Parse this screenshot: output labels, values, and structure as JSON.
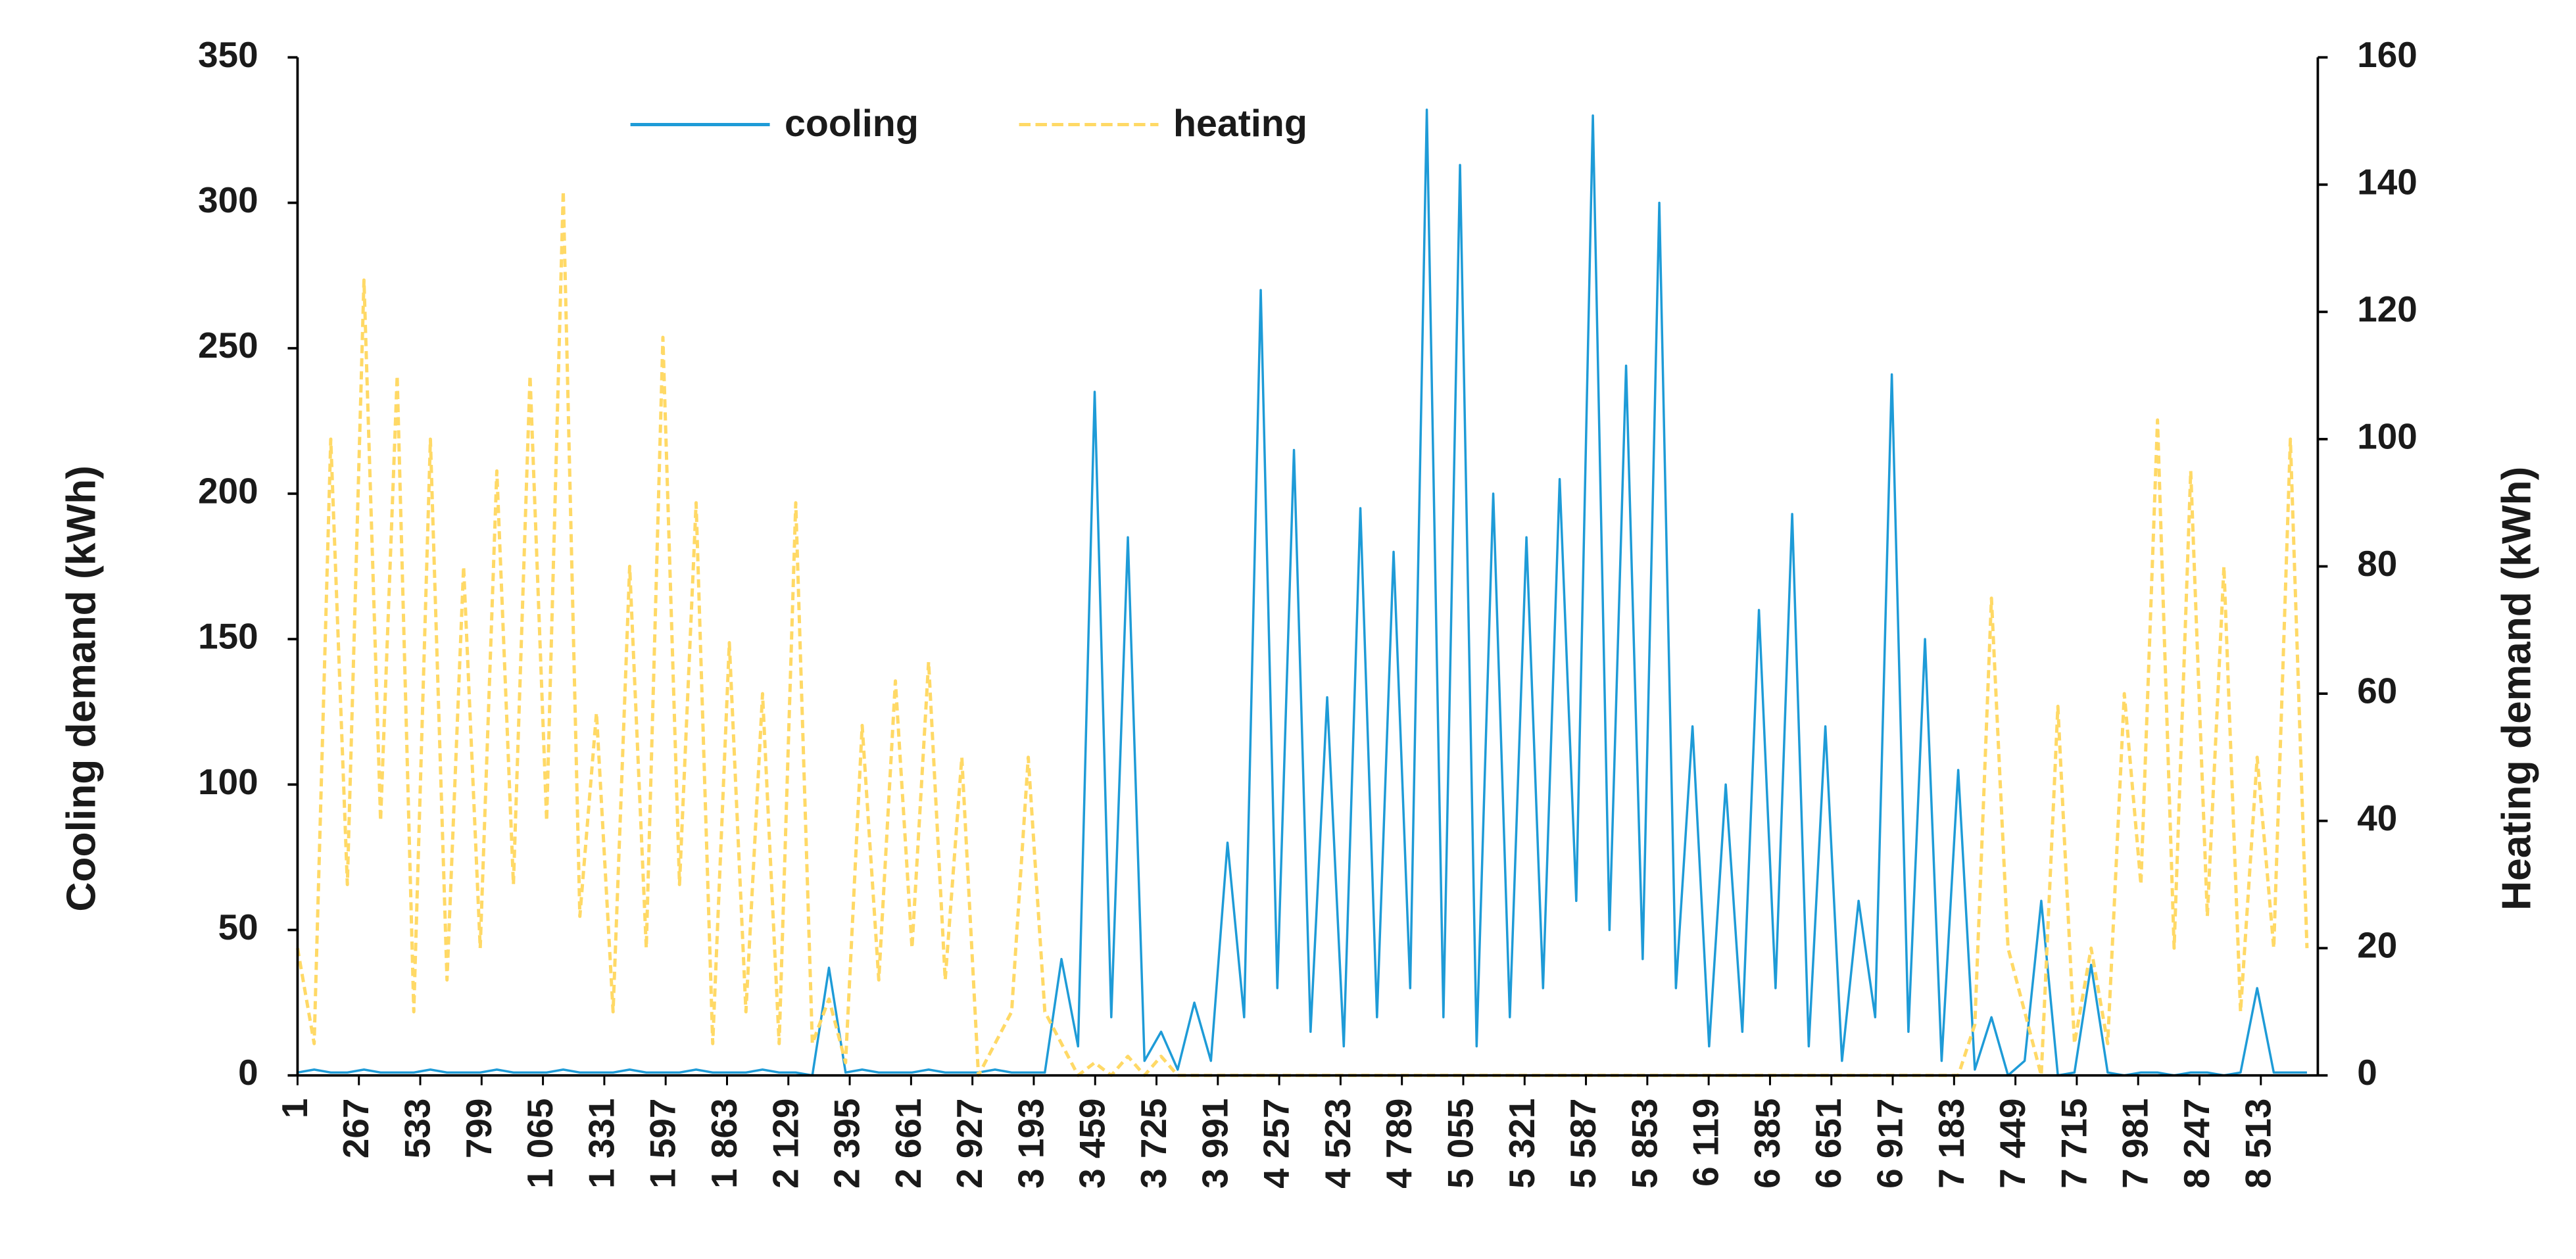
{
  "chart_data": {
    "type": "line",
    "y_label": "Cooling demand (kWh)",
    "y2_label": "Heating demand (kWh)",
    "legend": "top",
    "grid": false,
    "xlim": [
      1,
      8760
    ],
    "xticks": [
      1,
      267,
      533,
      799,
      {
        "value": 1065,
        "label": "1 065"
      },
      {
        "value": 1331,
        "label": "1 331"
      },
      {
        "value": 1597,
        "label": "1 597"
      },
      {
        "value": 1863,
        "label": "1 863"
      },
      {
        "value": 2129,
        "label": "2 129"
      },
      {
        "value": 2395,
        "label": "2 395"
      },
      {
        "value": 2661,
        "label": "2 661"
      },
      {
        "value": 2927,
        "label": "2 927"
      },
      {
        "value": 3193,
        "label": "3 193"
      },
      {
        "value": 3459,
        "label": "3 459"
      },
      {
        "value": 3725,
        "label": "3 725"
      },
      {
        "value": 3991,
        "label": "3 991"
      },
      {
        "value": 4257,
        "label": "4 257"
      },
      {
        "value": 4523,
        "label": "4 523"
      },
      {
        "value": 4789,
        "label": "4 789"
      },
      {
        "value": 5055,
        "label": "5 055"
      },
      {
        "value": 5321,
        "label": "5 321"
      },
      {
        "value": 5587,
        "label": "5 587"
      },
      {
        "value": 5853,
        "label": "5 853"
      },
      {
        "value": 6119,
        "label": "6 119"
      },
      {
        "value": 6385,
        "label": "6 385"
      },
      {
        "value": 6651,
        "label": "6 651"
      },
      {
        "value": 6917,
        "label": "6 917"
      },
      {
        "value": 7183,
        "label": "7 183"
      },
      {
        "value": 7449,
        "label": "7 449"
      },
      {
        "value": 7715,
        "label": "7 715"
      },
      {
        "value": 7981,
        "label": "7 981"
      },
      {
        "value": 8247,
        "label": "8 247"
      },
      {
        "value": 8513,
        "label": "8 513"
      }
    ],
    "ylim": [
      0,
      350
    ],
    "yticks": [
      0,
      50,
      100,
      150,
      200,
      250,
      300,
      350
    ],
    "y2lim": [
      0,
      160
    ],
    "y2ticks": [
      0,
      20,
      40,
      60,
      80,
      100,
      120,
      140,
      160
    ],
    "x": [
      1,
      73,
      145,
      217,
      289,
      361,
      433,
      505,
      577,
      649,
      721,
      793,
      865,
      937,
      1009,
      1081,
      1153,
      1225,
      1297,
      1369,
      1441,
      1513,
      1585,
      1657,
      1729,
      1801,
      1873,
      1945,
      2017,
      2089,
      2161,
      2233,
      2305,
      2377,
      2449,
      2521,
      2593,
      2665,
      2737,
      2809,
      2881,
      2953,
      3025,
      3097,
      3169,
      3241,
      3313,
      3385,
      3457,
      3529,
      3601,
      3673,
      3745,
      3817,
      3889,
      3961,
      4033,
      4105,
      4177,
      4249,
      4321,
      4393,
      4465,
      4537,
      4609,
      4681,
      4753,
      4825,
      4897,
      4969,
      5041,
      5113,
      5185,
      5257,
      5329,
      5401,
      5473,
      5545,
      5617,
      5689,
      5761,
      5833,
      5905,
      5977,
      6049,
      6121,
      6193,
      6265,
      6337,
      6409,
      6481,
      6553,
      6625,
      6697,
      6769,
      6841,
      6913,
      6985,
      7057,
      7129,
      7201,
      7273,
      7345,
      7417,
      7489,
      7561,
      7633,
      7705,
      7777,
      7849,
      7921,
      7993,
      8065,
      8137,
      8209,
      8281,
      8353,
      8425,
      8497,
      8569,
      8641,
      8713
    ],
    "series": [
      {
        "name": "cooling",
        "color": "#1e9bd7",
        "style": "solid",
        "axis": "y",
        "values": [
          1,
          2,
          1,
          1,
          2,
          1,
          1,
          1,
          2,
          1,
          1,
          1,
          2,
          1,
          1,
          1,
          2,
          1,
          1,
          1,
          2,
          1,
          1,
          1,
          2,
          1,
          1,
          1,
          2,
          1,
          1,
          0,
          37,
          1,
          2,
          1,
          1,
          1,
          2,
          1,
          1,
          1,
          2,
          1,
          1,
          1,
          40,
          10,
          235,
          20,
          185,
          5,
          15,
          2,
          25,
          5,
          80,
          20,
          270,
          30,
          215,
          15,
          130,
          10,
          195,
          20,
          180,
          30,
          332,
          20,
          313,
          10,
          200,
          20,
          185,
          30,
          205,
          60,
          330,
          50,
          244,
          40,
          300,
          30,
          120,
          10,
          100,
          15,
          160,
          30,
          193,
          10,
          120,
          5,
          60,
          20,
          241,
          15,
          150,
          5,
          105,
          2,
          20,
          0,
          5,
          60,
          0,
          1,
          38,
          1,
          0,
          1,
          1,
          0,
          1,
          1,
          0,
          1,
          30,
          1,
          1,
          1
        ]
      },
      {
        "name": "heating",
        "color": "#ffd966",
        "style": "dashed",
        "axis": "y2",
        "values": [
          20,
          5,
          100,
          30,
          125,
          40,
          110,
          10,
          100,
          15,
          80,
          20,
          95,
          30,
          110,
          40,
          139,
          25,
          57,
          10,
          80,
          20,
          116,
          30,
          90,
          5,
          68,
          10,
          60,
          5,
          90,
          5,
          12,
          2,
          55,
          15,
          62,
          20,
          65,
          15,
          50,
          0,
          5,
          10,
          50,
          10,
          5,
          0,
          2,
          0,
          3,
          0,
          3,
          0,
          0,
          0,
          0,
          0,
          0,
          0,
          0,
          0,
          0,
          0,
          0,
          0,
          0,
          0,
          0,
          0,
          0,
          0,
          0,
          0,
          0,
          0,
          0,
          0,
          0,
          0,
          0,
          0,
          0,
          0,
          0,
          0,
          0,
          0,
          0,
          0,
          0,
          0,
          0,
          0,
          0,
          0,
          0,
          0,
          0,
          0,
          0,
          8,
          75,
          20,
          10,
          0,
          58,
          5,
          20,
          5,
          60,
          30,
          103,
          20,
          95,
          25,
          80,
          10,
          50,
          20,
          100,
          20
        ]
      }
    ]
  }
}
